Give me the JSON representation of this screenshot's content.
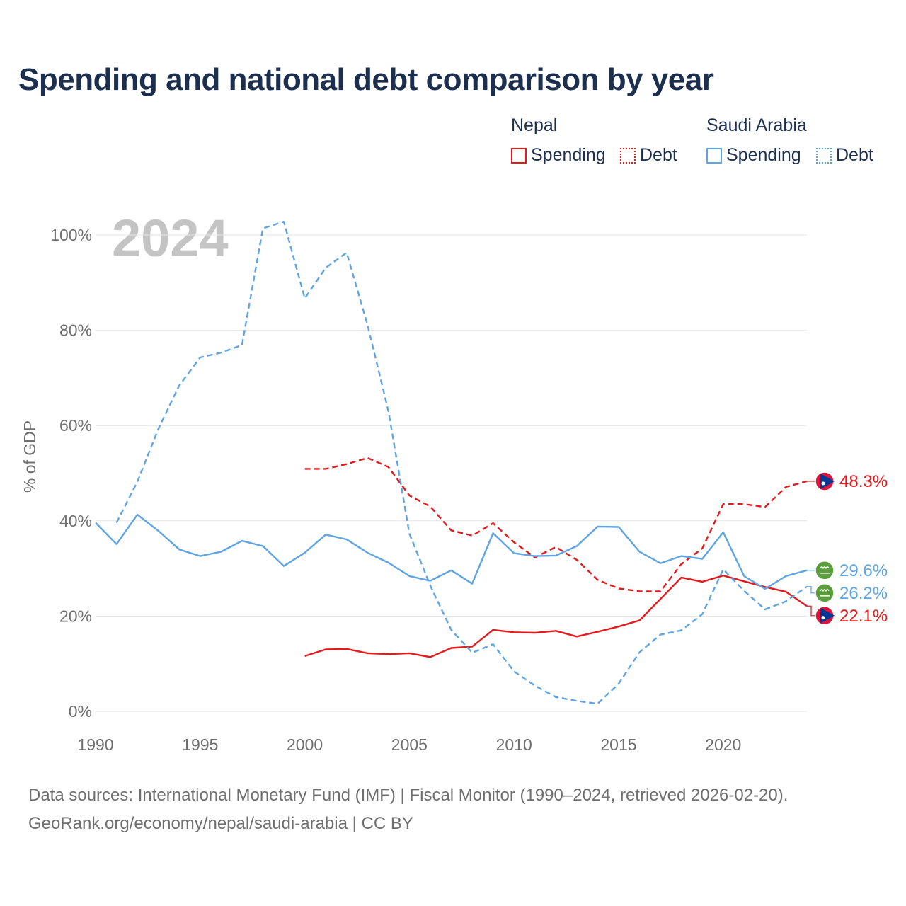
{
  "title": "Spending and national debt comparison by year",
  "legend": {
    "groups": [
      {
        "country": "Nepal",
        "color": "#e41a1c",
        "items": [
          {
            "label": "Spending",
            "style": "solid"
          },
          {
            "label": "Debt",
            "style": "dotted"
          }
        ]
      },
      {
        "country": "Saudi Arabia",
        "color": "#5fa4e3",
        "items": [
          {
            "label": "Spending",
            "style": "solid"
          },
          {
            "label": "Debt",
            "style": "dotted"
          }
        ]
      }
    ]
  },
  "footer": {
    "sources": "Data sources: International Monetary Fund (IMF) | Fiscal Monitor (1990–2024, retrieved 2026-02-20).",
    "credit": "GeoRank.org/economy/nepal/saudi-arabia | CC BY"
  },
  "chart_data": {
    "type": "line",
    "year_watermark": "2024",
    "ylabel": "% of GDP",
    "xlabel": "",
    "xlim": [
      1990,
      2024
    ],
    "ylim": [
      0,
      100
    ],
    "x_ticks": [
      1990,
      1995,
      2000,
      2005,
      2010,
      2015,
      2020
    ],
    "y_ticks": [
      0,
      20,
      40,
      60,
      80,
      100
    ],
    "y_tick_labels": [
      "0%",
      "20%",
      "40%",
      "60%",
      "80%",
      "100%"
    ],
    "grid": true,
    "series": [
      {
        "name": "Nepal Spending",
        "country": "Nepal",
        "metric": "Spending",
        "color": "#e41a1c",
        "dashed": false,
        "end_label": "22.1%",
        "points": [
          [
            2000,
            11.6
          ],
          [
            2001,
            13.0
          ],
          [
            2002,
            13.1
          ],
          [
            2003,
            12.2
          ],
          [
            2004,
            12.0
          ],
          [
            2005,
            12.2
          ],
          [
            2006,
            11.4
          ],
          [
            2007,
            13.3
          ],
          [
            2008,
            13.6
          ],
          [
            2009,
            17.1
          ],
          [
            2010,
            16.6
          ],
          [
            2011,
            16.5
          ],
          [
            2012,
            16.9
          ],
          [
            2013,
            15.7
          ],
          [
            2014,
            16.7
          ],
          [
            2015,
            17.8
          ],
          [
            2016,
            19.1
          ],
          [
            2017,
            23.6
          ],
          [
            2018,
            28.1
          ],
          [
            2019,
            27.2
          ],
          [
            2020,
            28.5
          ],
          [
            2021,
            27.3
          ],
          [
            2022,
            26.1
          ],
          [
            2023,
            25.1
          ],
          [
            2024,
            22.1
          ]
        ]
      },
      {
        "name": "Nepal Debt",
        "country": "Nepal",
        "metric": "Debt",
        "color": "#e41a1c",
        "dashed": true,
        "end_label": "48.3%",
        "points": [
          [
            2000,
            50.9
          ],
          [
            2001,
            50.9
          ],
          [
            2002,
            51.9
          ],
          [
            2003,
            53.2
          ],
          [
            2004,
            51.3
          ],
          [
            2005,
            45.3
          ],
          [
            2006,
            43.0
          ],
          [
            2007,
            38.0
          ],
          [
            2008,
            36.9
          ],
          [
            2009,
            39.5
          ],
          [
            2010,
            35.5
          ],
          [
            2011,
            32.3
          ],
          [
            2012,
            34.5
          ],
          [
            2013,
            31.8
          ],
          [
            2014,
            27.6
          ],
          [
            2015,
            25.8
          ],
          [
            2016,
            25.2
          ],
          [
            2017,
            25.2
          ],
          [
            2018,
            30.9
          ],
          [
            2019,
            34.2
          ],
          [
            2020,
            43.5
          ],
          [
            2021,
            43.5
          ],
          [
            2022,
            42.9
          ],
          [
            2023,
            47.1
          ],
          [
            2024,
            48.3
          ]
        ]
      },
      {
        "name": "Saudi Arabia Spending",
        "country": "Saudi Arabia",
        "metric": "Spending",
        "color": "#5fa4e3",
        "dashed": false,
        "end_label": "29.6%",
        "points": [
          [
            1990,
            39.6
          ],
          [
            1991,
            35.1
          ],
          [
            1992,
            41.3
          ],
          [
            1993,
            37.9
          ],
          [
            1994,
            34.0
          ],
          [
            1995,
            32.6
          ],
          [
            1996,
            33.5
          ],
          [
            1997,
            35.8
          ],
          [
            1998,
            34.7
          ],
          [
            1999,
            30.5
          ],
          [
            2000,
            33.3
          ],
          [
            2001,
            37.1
          ],
          [
            2002,
            36.1
          ],
          [
            2003,
            33.3
          ],
          [
            2004,
            31.2
          ],
          [
            2005,
            28.4
          ],
          [
            2006,
            27.4
          ],
          [
            2007,
            29.6
          ],
          [
            2008,
            26.8
          ],
          [
            2009,
            37.4
          ],
          [
            2010,
            33.2
          ],
          [
            2011,
            32.6
          ],
          [
            2012,
            32.7
          ],
          [
            2013,
            34.7
          ],
          [
            2014,
            38.8
          ],
          [
            2015,
            38.7
          ],
          [
            2016,
            33.5
          ],
          [
            2017,
            31.1
          ],
          [
            2018,
            32.6
          ],
          [
            2019,
            32.0
          ],
          [
            2020,
            37.6
          ],
          [
            2021,
            28.4
          ],
          [
            2022,
            25.7
          ],
          [
            2023,
            28.4
          ],
          [
            2024,
            29.6
          ]
        ]
      },
      {
        "name": "Saudi Arabia Debt",
        "country": "Saudi Arabia",
        "metric": "Debt",
        "color": "#5fa4e3",
        "dashed": true,
        "end_label": "26.2%",
        "points": [
          [
            1991,
            39.6
          ],
          [
            1992,
            48.2
          ],
          [
            1993,
            59.3
          ],
          [
            1994,
            68.4
          ],
          [
            1995,
            74.3
          ],
          [
            1996,
            75.3
          ],
          [
            1997,
            76.9
          ],
          [
            1998,
            101.4
          ],
          [
            1999,
            102.8
          ],
          [
            2000,
            86.7
          ],
          [
            2001,
            93.1
          ],
          [
            2002,
            96.3
          ],
          [
            2003,
            81.1
          ],
          [
            2004,
            63.0
          ],
          [
            2005,
            37.3
          ],
          [
            2006,
            26.4
          ],
          [
            2007,
            17.1
          ],
          [
            2008,
            12.3
          ],
          [
            2009,
            14.1
          ],
          [
            2010,
            8.4
          ],
          [
            2011,
            5.4
          ],
          [
            2012,
            3.0
          ],
          [
            2013,
            2.2
          ],
          [
            2014,
            1.6
          ],
          [
            2015,
            5.8
          ],
          [
            2016,
            12.4
          ],
          [
            2017,
            16.1
          ],
          [
            2018,
            17.0
          ],
          [
            2019,
            20.4
          ],
          [
            2020,
            29.8
          ],
          [
            2021,
            25.3
          ],
          [
            2022,
            21.4
          ],
          [
            2023,
            23.1
          ],
          [
            2024,
            26.2
          ]
        ]
      }
    ]
  }
}
